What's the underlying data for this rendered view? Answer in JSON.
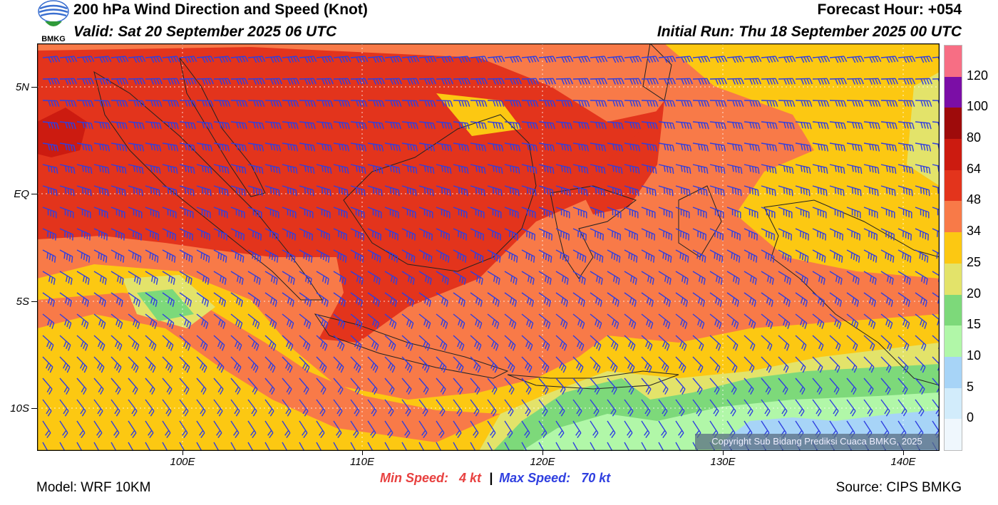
{
  "header": {
    "title": "200 hPa Wind Direction and Speed (Knot)",
    "valid": "Valid: Sat 20 September 2025 06 UTC",
    "forecast_hour": "Forecast Hour: +054",
    "initial_run": "Initial Run: Thu 18 September 2025 00 UTC",
    "logo_text": "BMKG"
  },
  "map": {
    "lat_labels": [
      "5N",
      "EQ",
      "5S",
      "10S"
    ],
    "lon_labels": [
      "100E",
      "110E",
      "120E",
      "130E",
      "140E"
    ],
    "copyright": "Copyright Sub Bidang Prediksi Cuaca BMKG, 2025",
    "barb_color": "#2f3fe0"
  },
  "colorbar": {
    "labels": [
      "120",
      "100",
      "80",
      "64",
      "48",
      "34",
      "25",
      "20",
      "15",
      "10",
      "5",
      "0"
    ],
    "colors": [
      "#f76e84",
      "#7b0ea6",
      "#9e0b0b",
      "#cc1b10",
      "#e3341c",
      "#f87a48",
      "#fcc812",
      "#e3e36a",
      "#7dd97a",
      "#b1f7a8",
      "#a7d4f7",
      "#d2ecfb",
      "#eff7fd"
    ]
  },
  "footer": {
    "min_label": "Min Speed:",
    "min_value": "4 kt",
    "separator": "|",
    "max_label": "Max Speed:",
    "max_value": "70 kt",
    "model": "Model: WRF 10KM",
    "source": "Source: CIPS BMKG"
  }
}
